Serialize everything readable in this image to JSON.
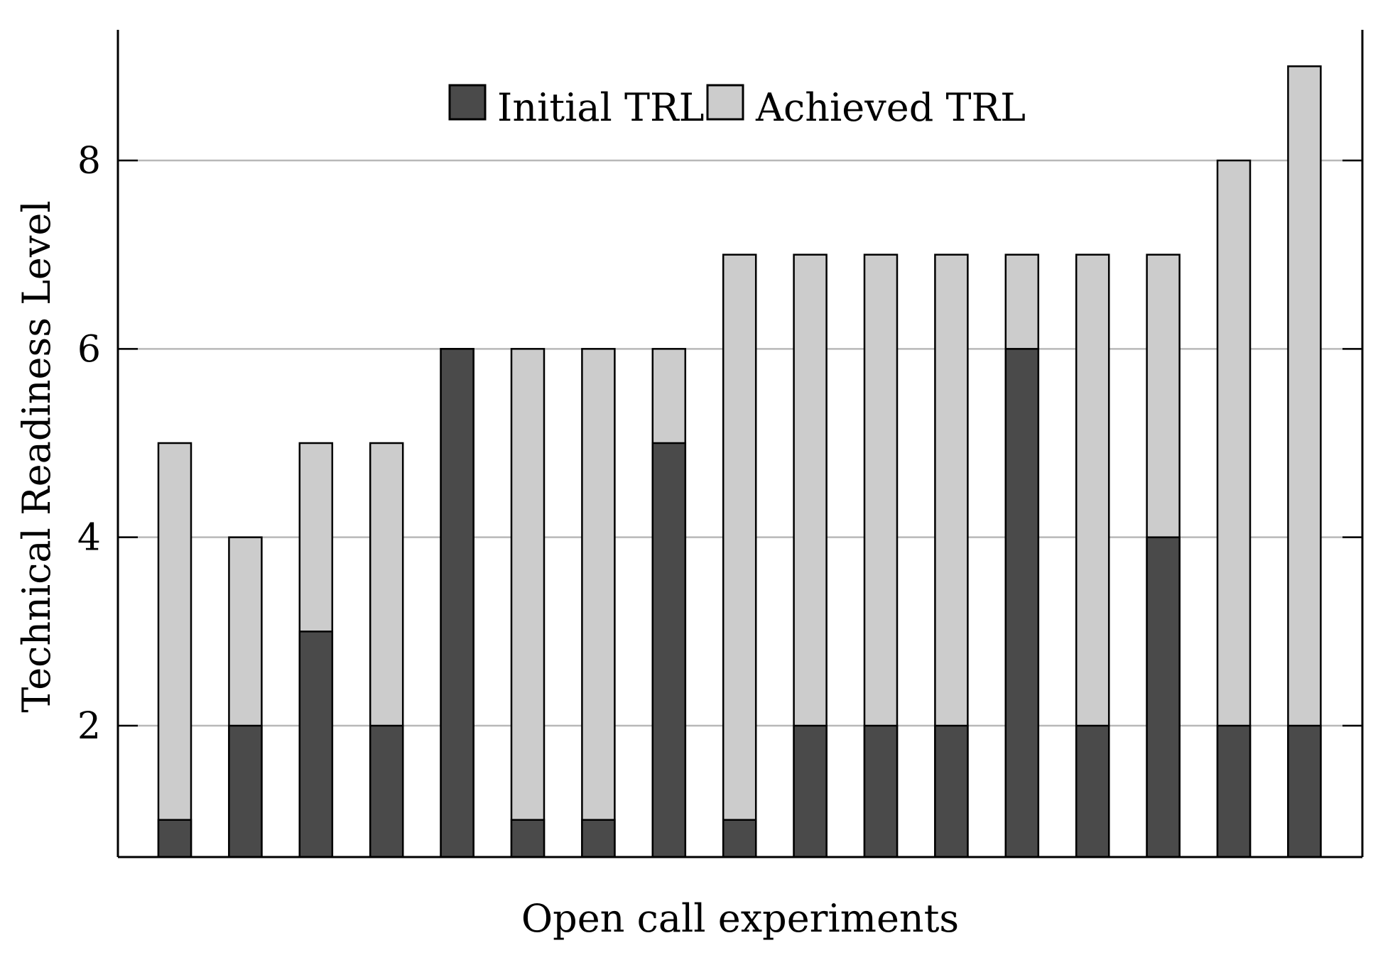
{
  "chart_data": {
    "type": "bar",
    "stacked_overlay": true,
    "xlabel": "Open call experiments",
    "ylabel": "Technical Readiness Level",
    "ylim": [
      0.7,
      9.5
    ],
    "yticks": [
      2,
      4,
      6,
      8
    ],
    "grid": "horizontal",
    "legend_position": "top-center",
    "categories": [
      "",
      "",
      "",
      "",
      "",
      "",
      "",
      "",
      "",
      "",
      "",
      "",
      "",
      "",
      "",
      "",
      ""
    ],
    "series": [
      {
        "name": "Initial TRL",
        "color": "#4a4a4a",
        "values": [
          1,
          2,
          3,
          2,
          6,
          1,
          1,
          5,
          1,
          2,
          2,
          2,
          6,
          2,
          4,
          2,
          2
        ]
      },
      {
        "name": "Achieved TRL",
        "color": "#cccccc",
        "values": [
          5,
          4,
          5,
          5,
          6,
          6,
          6,
          6,
          7,
          7,
          7,
          7,
          7,
          7,
          7,
          8,
          9
        ]
      }
    ]
  }
}
